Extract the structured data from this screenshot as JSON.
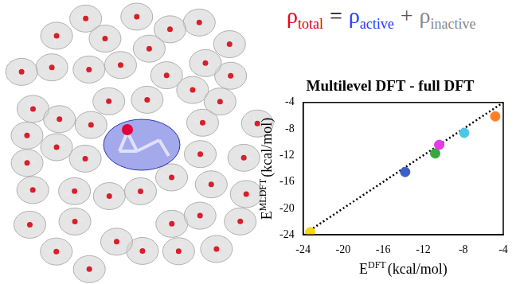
{
  "equation": [
    {
      "text": "ρ",
      "subscript": "total",
      "color": "#e3001b"
    },
    {
      "text": "=",
      "color": "#000000"
    },
    {
      "text": "ρ",
      "subscript": "active",
      "color": "#1f3dff"
    },
    {
      "text": "+",
      "color": "#555555"
    },
    {
      "text": "ρ",
      "subscript": "inactive",
      "color": "#888888"
    }
  ],
  "chart_data": {
    "type": "scatter",
    "title": "Multilevel DFT - full DFT",
    "xlabel": {
      "text": "E",
      "superscript": "DFT",
      "unit": "(kcal/mol)"
    },
    "ylabel": {
      "text": "E",
      "superscript": "MLDFT",
      "unit": "(kcal/mol)"
    },
    "x": [
      -23.3,
      -13.8,
      -10.8,
      -10.4,
      -7.9,
      -4.8
    ],
    "values": [
      -23.6,
      -14.5,
      -11.7,
      -10.4,
      -8.6,
      -6.1
    ],
    "colors": [
      "#f5d90a",
      "#3a5fcd",
      "#35a83a",
      "#e23de2",
      "#4cc6e6",
      "#ff7f27"
    ],
    "marker": "circle",
    "reference_line": {
      "x": [
        -24,
        -4
      ],
      "y": [
        -24,
        -4
      ],
      "color": "#000000",
      "line_style": "dotted"
    },
    "xlim": [
      -24,
      -4
    ],
    "ylim": [
      -24,
      -4
    ],
    "xticks": [
      -24,
      -20,
      -16,
      -12,
      -8,
      -4
    ],
    "yticks": [
      -24,
      -20,
      -16,
      -12,
      -8,
      -4
    ],
    "grid": false
  }
}
